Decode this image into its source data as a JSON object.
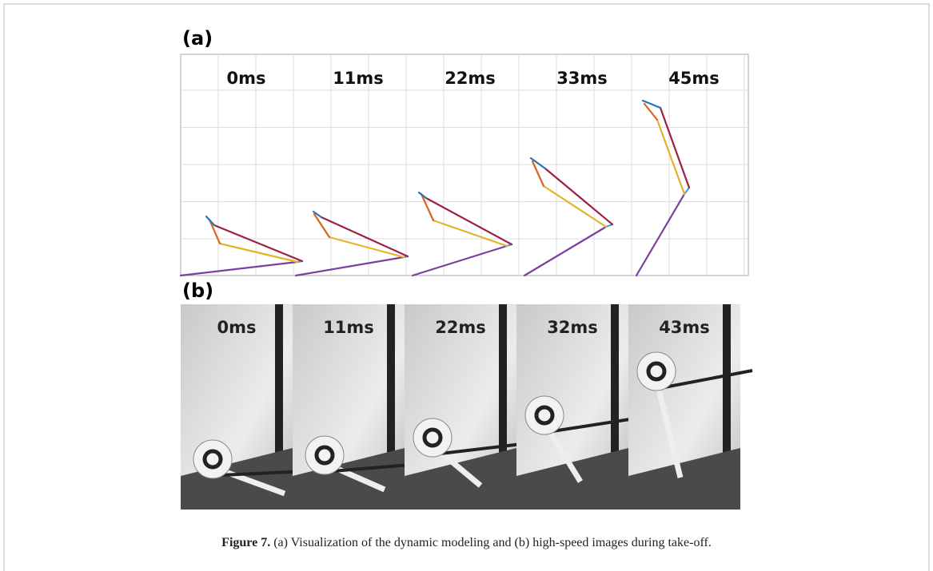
{
  "panel_a": {
    "label": "(a)",
    "frames": [
      "0ms",
      "11ms",
      "22ms",
      "33ms",
      "45ms"
    ]
  },
  "panel_b": {
    "label": "(b)",
    "frames": [
      "0ms",
      "11ms",
      "22ms",
      "32ms",
      "43ms"
    ]
  },
  "caption": {
    "label": "Figure 7.",
    "text": "(a) Visualization of the dynamic modeling and (b) high-speed images during take-off."
  }
}
